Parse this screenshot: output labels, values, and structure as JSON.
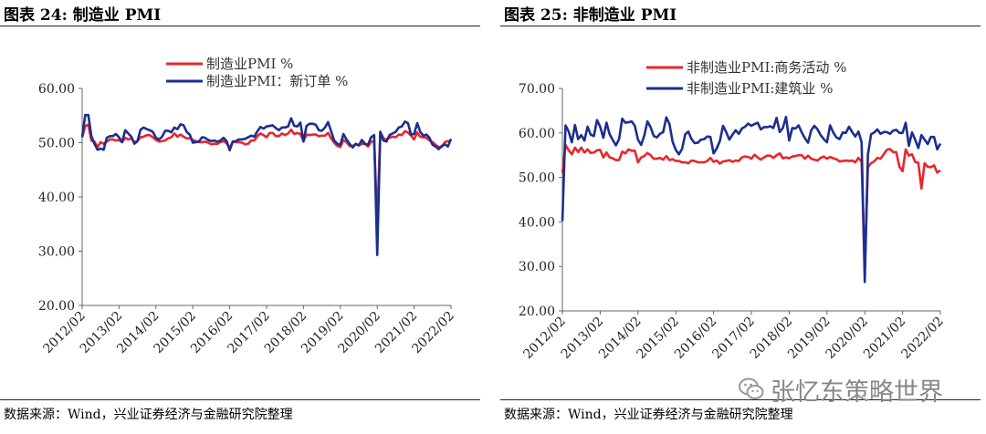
{
  "left": {
    "title": "图表 24:  制造业 PMI",
    "source": "数据来源：Wind，兴业证券经济与金融研究院整理"
  },
  "right": {
    "title": "图表 25:  非制造业 PMI",
    "source": "数据来源：Wind，兴业证券经济与金融研究院整理"
  },
  "watermark": {
    "text": "张忆东策略世界",
    "icon": "wechat-icon"
  },
  "chart_data": [
    {
      "type": "line",
      "ylim": [
        20,
        60
      ],
      "yticks": [
        "20.00",
        "30.00",
        "40.00",
        "50.00",
        "60.00"
      ],
      "xticks": [
        "2012/02",
        "2013/02",
        "2014/02",
        "2015/02",
        "2016/02",
        "2017/02",
        "2018/02",
        "2019/02",
        "2020/02",
        "2021/02",
        "2022/02"
      ],
      "grid": false,
      "legend": "top-center",
      "x_start": "2012-02",
      "series": [
        {
          "name": "制造业PMI %",
          "color": "#e8262d",
          "values": [
            51.0,
            53.1,
            53.3,
            50.4,
            50.2,
            49.2,
            50.1,
            49.8,
            50.2,
            50.6,
            50.6,
            50.4,
            50.5,
            50.1,
            50.9,
            50.6,
            50.8,
            50.1,
            50.3,
            51.0,
            51.1,
            51.4,
            51.4,
            51.0,
            50.5,
            50.2,
            50.3,
            50.4,
            50.8,
            51.0,
            51.7,
            51.1,
            51.5,
            51.1,
            50.8,
            50.8,
            50.5,
            50.3,
            50.1,
            50.1,
            50.2,
            50.0,
            49.7,
            49.8,
            49.8,
            50.1,
            50.3,
            49.9,
            49.0,
            50.2,
            50.1,
            50.1,
            50.0,
            49.7,
            49.8,
            50.4,
            50.4,
            51.2,
            51.7,
            51.4,
            51.0,
            51.8,
            51.8,
            51.2,
            51.2,
            51.7,
            51.4,
            51.7,
            52.4,
            51.6,
            51.8,
            51.6,
            50.3,
            51.5,
            51.4,
            51.5,
            51.5,
            51.2,
            51.3,
            51.3,
            51.8,
            50.8,
            50.0,
            49.4,
            49.2,
            50.5,
            50.1,
            49.4,
            49.4,
            49.7,
            49.5,
            49.8,
            49.8,
            49.3,
            50.2,
            50.2,
            35.7,
            52.0,
            50.8,
            50.6,
            50.9,
            51.1,
            51.0,
            51.5,
            51.4,
            52.1,
            51.9,
            51.3,
            50.6,
            51.9,
            51.1,
            51.0,
            50.9,
            50.4,
            50.1,
            49.6,
            49.2,
            49.2,
            50.1,
            50.3,
            50.2
          ]
        },
        {
          "name": "制造业PMI：新订单 %",
          "color": "#1c2e8f",
          "values": [
            51.0,
            55.1,
            55.1,
            51.2,
            49.8,
            48.7,
            48.9,
            48.7,
            50.9,
            51.2,
            51.2,
            51.6,
            51.0,
            50.1,
            52.3,
            51.7,
            51.1,
            49.8,
            50.3,
            52.4,
            52.8,
            52.5,
            52.3,
            52.0,
            50.9,
            50.6,
            51.1,
            52.2,
            52.2,
            51.9,
            52.8,
            52.5,
            53.4,
            53.2,
            52.0,
            51.5,
            50.0,
            50.1,
            50.2,
            51.0,
            50.9,
            50.5,
            50.3,
            50.4,
            50.2,
            50.4,
            50.9,
            50.3,
            48.6,
            50.2,
            50.3,
            50.6,
            50.6,
            50.7,
            51.0,
            51.3,
            51.1,
            52.1,
            52.9,
            52.6,
            53.0,
            53.1,
            53.2,
            52.7,
            52.3,
            52.8,
            52.8,
            53.0,
            54.5,
            53.1,
            53.0,
            53.7,
            50.2,
            53.1,
            53.5,
            53.5,
            53.3,
            52.3,
            52.2,
            52.8,
            53.8,
            52.1,
            50.4,
            49.8,
            49.6,
            51.6,
            50.6,
            49.8,
            49.1,
            49.8,
            49.5,
            50.5,
            49.8,
            49.6,
            51.0,
            51.4,
            29.3,
            52.0,
            50.4,
            50.2,
            51.4,
            51.7,
            52.0,
            52.8,
            53.0,
            53.9,
            53.6,
            51.5,
            51.6,
            53.6,
            52.0,
            51.3,
            51.5,
            50.9,
            49.6,
            49.3,
            48.8,
            49.4,
            49.7,
            49.3,
            50.7
          ]
        }
      ]
    },
    {
      "type": "line",
      "ylim": [
        20,
        70
      ],
      "yticks": [
        "20.00",
        "30.00",
        "40.00",
        "50.00",
        "60.00",
        "70.00"
      ],
      "xticks": [
        "2012/02",
        "2013/02",
        "2014/02",
        "2015/02",
        "2016/02",
        "2017/02",
        "2018/02",
        "2019/02",
        "2020/02",
        "2021/02",
        "2022/02"
      ],
      "grid": false,
      "legend": "top-center",
      "x_start": "2012-02",
      "series": [
        {
          "name": "非制造业PMI:商务活动 %",
          "color": "#e8262d",
          "values": [
            51.0,
            57.3,
            56.1,
            55.2,
            56.7,
            55.7,
            56.7,
            55.6,
            56.3,
            55.5,
            55.6,
            56.1,
            56.2,
            54.5,
            55.6,
            54.5,
            54.3,
            53.9,
            53.9,
            55.8,
            55.4,
            56.3,
            56.0,
            56.0,
            53.4,
            54.5,
            54.8,
            55.5,
            55.0,
            54.2,
            54.2,
            54.4,
            54.0,
            54.8,
            53.9,
            54.1,
            53.7,
            53.7,
            53.4,
            53.4,
            53.2,
            53.8,
            53.7,
            53.4,
            53.4,
            53.4,
            53.7,
            54.4,
            53.5,
            53.8,
            53.1,
            53.6,
            53.7,
            53.9,
            53.5,
            53.8,
            53.7,
            54.5,
            54.7,
            54.6,
            54.2,
            55.1,
            54.5,
            54.0,
            54.5,
            54.9,
            54.9,
            54.4,
            55.0,
            55.4,
            54.3,
            54.5,
            54.3,
            54.7,
            54.8,
            55.0,
            55.0,
            54.2,
            54.9,
            54.2,
            54.0,
            53.8,
            54.4,
            54.7,
            54.2,
            54.6,
            54.3,
            54.1,
            53.6,
            53.7,
            53.8,
            53.7,
            53.8,
            53.4,
            54.4,
            53.5,
            29.6,
            52.3,
            53.2,
            53.6,
            54.4,
            54.2,
            55.2,
            56.2,
            56.4,
            55.7,
            55.7,
            52.4,
            51.4,
            56.3,
            54.9,
            55.2,
            53.5,
            53.3,
            47.5,
            53.2,
            52.4,
            52.3,
            52.7,
            51.1,
            51.6
          ]
        },
        {
          "name": "非制造业PMI:建筑业 %",
          "color": "#1c2e8f",
          "values": [
            40.2,
            61.7,
            60.3,
            57.9,
            61.8,
            58.6,
            59.5,
            58.3,
            61.4,
            59.6,
            59.3,
            62.9,
            61.4,
            58.9,
            62.3,
            59.7,
            58.4,
            57.2,
            58.6,
            63.2,
            62.3,
            62.4,
            62.6,
            61.6,
            58.5,
            57.3,
            59.4,
            62.6,
            61.3,
            59.3,
            59.0,
            59.8,
            60.2,
            63.5,
            62.0,
            58.0,
            56.2,
            55.2,
            56.4,
            59.7,
            60.3,
            58.6,
            57.7,
            57.8,
            58.5,
            58.6,
            59.2,
            59.1,
            55.4,
            56.5,
            58.2,
            61.6,
            60.2,
            58.5,
            59.6,
            60.6,
            59.8,
            61.0,
            61.4,
            62.1,
            61.6,
            62.0,
            62.3,
            60.8,
            61.3,
            61.3,
            61.5,
            61.1,
            63.4,
            60.2,
            61.1,
            63.6,
            58.3,
            61.1,
            61.0,
            61.7,
            60.1,
            58.8,
            57.8,
            60.6,
            61.6,
            60.8,
            59.5,
            58.6,
            57.9,
            61.7,
            60.1,
            59.0,
            58.6,
            60.1,
            60.0,
            61.4,
            60.2,
            59.2,
            60.3,
            57.9,
            26.5,
            55.1,
            59.7,
            60.1,
            60.8,
            59.8,
            60.2,
            60.2,
            59.8,
            60.5,
            60.7,
            60.0,
            60.0,
            62.3,
            57.1,
            60.1,
            58.5,
            56.6,
            59.5,
            58.5,
            57.5,
            59.1,
            59.1,
            56.3,
            57.6
          ]
        }
      ]
    }
  ]
}
